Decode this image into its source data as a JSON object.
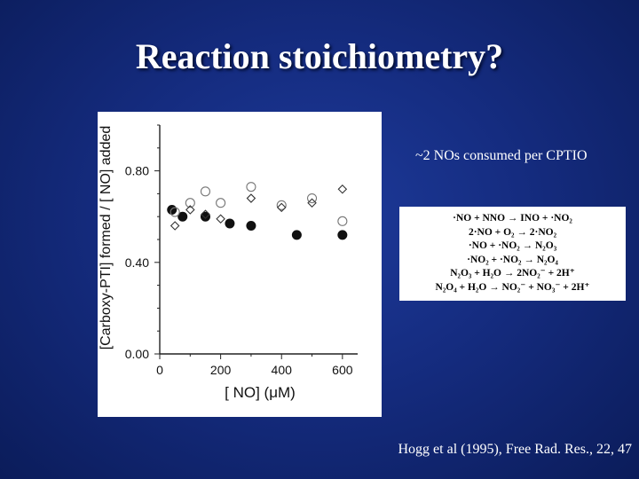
{
  "slide": {
    "title": "Reaction stoichiometry?",
    "note": "~2 NOs consumed per CPTIO",
    "citation": "Hogg et al (1995), Free Rad. Res., 22, 47"
  },
  "equations": [
    "·NO + NNO → INO + ·NO₂",
    "2·NO + O₂ → 2·NO₂",
    "·NO + ·NO₂ → N₂O₃",
    "·NO₂ + ·NO₂ → N₂O₄",
    "N₂O₃ + H₂O → 2NO₂⁻ + 2H⁺",
    "N₂O₄ + H₂O → NO₂⁻ + NO₃⁻ + 2H⁺"
  ],
  "chart_data": {
    "type": "scatter",
    "xlabel": "[ NO] (μM)",
    "ylabel": "[Carboxy-PTI] formed / [ NO] added",
    "xlim": [
      0,
      650
    ],
    "ylim": [
      0,
      1.0
    ],
    "xticks": [
      "0",
      "200",
      "400",
      "600"
    ],
    "yticks": [
      "0.00",
      "0.40",
      "0.80"
    ],
    "grid": false,
    "series": [
      {
        "marker": "filled-circle",
        "x": [
          40,
          75,
          150,
          230,
          300,
          450,
          600
        ],
        "y": [
          0.63,
          0.6,
          0.6,
          0.57,
          0.56,
          0.52,
          0.52
        ]
      },
      {
        "marker": "open-circle",
        "x": [
          50,
          100,
          150,
          200,
          300,
          400,
          500,
          600
        ],
        "y": [
          0.62,
          0.66,
          0.71,
          0.66,
          0.73,
          0.65,
          0.68,
          0.58
        ]
      },
      {
        "marker": "open-diamond",
        "x": [
          50,
          100,
          150,
          200,
          300,
          400,
          500,
          600
        ],
        "y": [
          0.56,
          0.63,
          0.61,
          0.59,
          0.68,
          0.64,
          0.66,
          0.72
        ]
      }
    ]
  }
}
